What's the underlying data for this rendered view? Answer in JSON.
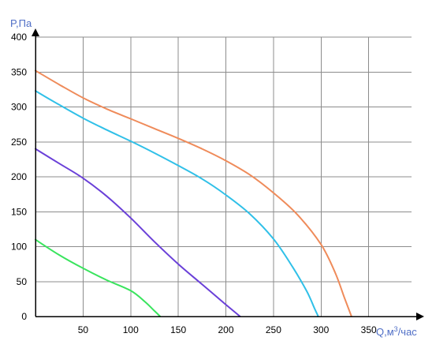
{
  "chart_data": {
    "type": "line",
    "title": "",
    "ylabel": "P,Па",
    "xlabel_main": "Q,м",
    "xlabel_sup": "3",
    "xlabel_tail": "/час",
    "xlim": [
      0,
      395
    ],
    "ylim": [
      0,
      400
    ],
    "x_ticks": [
      0,
      50,
      100,
      150,
      200,
      250,
      300,
      350
    ],
    "y_ticks": [
      0,
      50,
      100,
      150,
      200,
      250,
      300,
      350,
      400
    ],
    "x_tick_labels": [
      "50",
      "100",
      "150",
      "200",
      "250",
      "300",
      "350"
    ],
    "y_tick_labels": [
      "0",
      "50",
      "100",
      "150",
      "200",
      "250",
      "300",
      "350",
      "400"
    ],
    "grid": true,
    "legend": "none",
    "colors": {
      "grid": "#8c8c8c",
      "axis": "#000000",
      "ylabel": "#4f6ec6",
      "xlabel": "#4f6ec6"
    },
    "series": [
      {
        "color": "#ef8b5a",
        "x": [
          0,
          25,
          50,
          75,
          100,
          125,
          150,
          175,
          200,
          225,
          250,
          275,
          300,
          315,
          325,
          332
        ],
        "y": [
          352,
          332,
          313,
          297,
          283,
          269,
          255,
          240,
          223,
          203,
          177,
          146,
          103,
          62,
          25,
          0
        ]
      },
      {
        "color": "#30c0e8",
        "x": [
          0,
          25,
          50,
          75,
          100,
          125,
          150,
          175,
          200,
          225,
          250,
          270,
          285,
          293,
          297
        ],
        "y": [
          323,
          303,
          284,
          267,
          251,
          234,
          216,
          197,
          174,
          147,
          111,
          71,
          36,
          12,
          0
        ]
      },
      {
        "color": "#6a40d8",
        "x": [
          0,
          25,
          50,
          75,
          100,
          125,
          150,
          175,
          200,
          215
        ],
        "y": [
          240,
          219,
          198,
          172,
          141,
          107,
          75,
          46,
          17,
          0
        ]
      },
      {
        "color": "#39e45d",
        "x": [
          0,
          25,
          50,
          75,
          100,
          115,
          125,
          131
        ],
        "y": [
          110,
          88,
          69,
          52,
          37,
          21,
          8,
          0
        ]
      }
    ]
  }
}
